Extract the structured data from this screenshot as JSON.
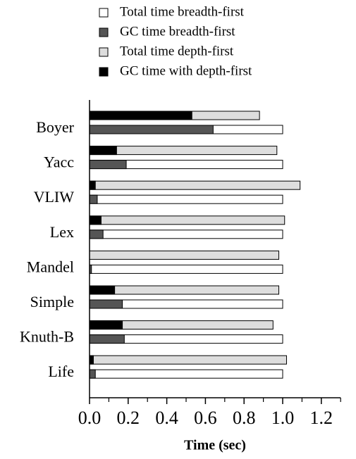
{
  "chart_data": {
    "type": "hbar-overlay",
    "x_label": "Time (sec)",
    "categories": [
      "Boyer",
      "Yacc",
      "VLIW",
      "Lex",
      "Mandel",
      "Simple",
      "Knuth-B",
      "Life"
    ],
    "series": [
      {
        "name": "Total time breadth-first",
        "color": "#ffffff",
        "values": [
          1.0,
          1.0,
          1.0,
          1.0,
          1.0,
          1.0,
          1.0,
          1.0
        ]
      },
      {
        "name": "GC time breadth-first",
        "color": "#555555",
        "values": [
          0.64,
          0.19,
          0.04,
          0.07,
          0.01,
          0.17,
          0.18,
          0.03
        ]
      },
      {
        "name": "Total time depth-first",
        "color": "#dddddd",
        "values": [
          0.88,
          0.97,
          1.09,
          1.01,
          0.98,
          0.98,
          0.95,
          1.02
        ]
      },
      {
        "name": "GC time with depth-first",
        "color": "#000000",
        "values": [
          0.53,
          0.14,
          0.03,
          0.06,
          0.0,
          0.13,
          0.17,
          0.02
        ]
      }
    ],
    "xlim": [
      0,
      1.3
    ],
    "xticks": [
      {
        "value": 0,
        "label": "0.0"
      },
      {
        "value": 0.2,
        "label": "0.2"
      },
      {
        "value": 0.4,
        "label": "0.4"
      },
      {
        "value": 0.6,
        "label": "0.6"
      },
      {
        "value": 0.8,
        "label": "0.8"
      },
      {
        "value": 1.0,
        "label": "1.0"
      },
      {
        "value": 1.2,
        "label": "1.2"
      }
    ],
    "minor_xticks": [
      0.1,
      0.3,
      0.5,
      0.7,
      0.9,
      1.1,
      1.3
    ]
  }
}
